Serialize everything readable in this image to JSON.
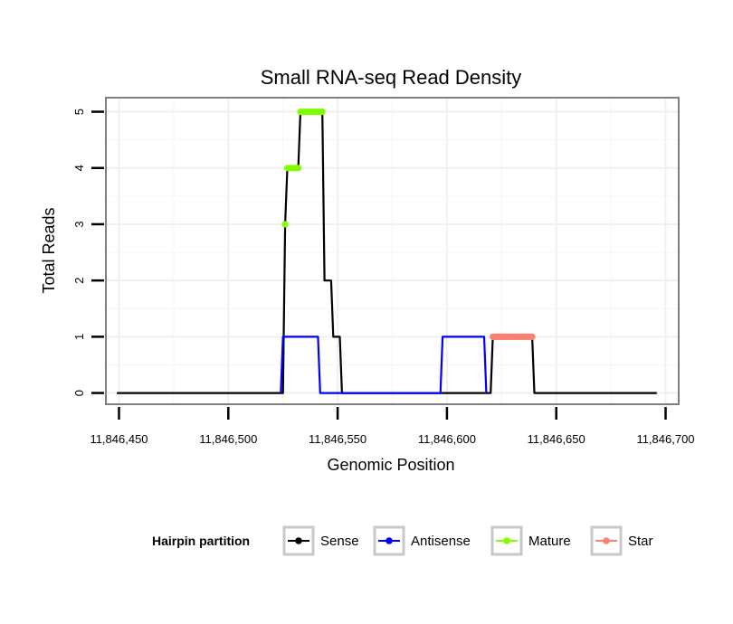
{
  "chart_data": {
    "type": "line",
    "title": "Small RNA-seq Read Density",
    "xlabel": "Genomic Position",
    "ylabel": "Total Reads",
    "xlim": [
      11846444,
      11846706
    ],
    "ylim": [
      -0.2,
      5.25
    ],
    "x_ticks": [
      11846450,
      11846500,
      11846550,
      11846600,
      11846650,
      11846700
    ],
    "x_tick_labels": [
      "11,846,450",
      "11,846,500",
      "11,846,550",
      "11,846,600",
      "11,846,650",
      "11,846,700"
    ],
    "y_ticks": [
      0,
      1,
      2,
      3,
      4,
      5
    ],
    "y_tick_labels": [
      "0",
      "1",
      "2",
      "3",
      "4",
      "5"
    ],
    "grid": true,
    "legend": {
      "title": "Hairpin partition",
      "position": "bottom",
      "entries": [
        {
          "name": "Sense",
          "color": "#000000"
        },
        {
          "name": "Antisense",
          "color": "#0000ff"
        },
        {
          "name": "Mature",
          "color": "#7fff00"
        },
        {
          "name": "Star",
          "color": "#fa8072"
        }
      ]
    },
    "series": [
      {
        "name": "Sense",
        "color": "#000000",
        "kind": "step_line",
        "x": [
          11846449,
          11846525,
          11846526,
          11846527,
          11846528,
          11846532,
          11846533,
          11846543,
          11846544,
          11846547,
          11846548,
          11846551,
          11846552,
          11846620,
          11846621,
          11846639,
          11846640,
          11846696
        ],
        "y": [
          0,
          0,
          3,
          4,
          4,
          4,
          5,
          5,
          2,
          2,
          1,
          1,
          0,
          0,
          1,
          1,
          0,
          0
        ]
      },
      {
        "name": "Antisense",
        "color": "#0000ff",
        "kind": "step_line",
        "x": [
          11846524,
          11846525,
          11846541,
          11846542,
          11846597,
          11846598,
          11846617,
          11846618
        ],
        "y": [
          0,
          1,
          1,
          0,
          0,
          1,
          1,
          0
        ]
      },
      {
        "name": "Mature",
        "color": "#7fff00",
        "kind": "points",
        "x": [
          11846526,
          11846527,
          11846528,
          11846529,
          11846530,
          11846531,
          11846532,
          11846533,
          11846534,
          11846535,
          11846536,
          11846537,
          11846538,
          11846539,
          11846540,
          11846541,
          11846542,
          11846543
        ],
        "y": [
          3,
          4,
          4,
          4,
          4,
          4,
          4,
          5,
          5,
          5,
          5,
          5,
          5,
          5,
          5,
          5,
          5,
          5
        ]
      },
      {
        "name": "Star",
        "color": "#fa8072",
        "kind": "points",
        "x": [
          11846621,
          11846622,
          11846623,
          11846624,
          11846625,
          11846626,
          11846627,
          11846628,
          11846629,
          11846630,
          11846631,
          11846632,
          11846633,
          11846634,
          11846635,
          11846636,
          11846637,
          11846638,
          11846639
        ],
        "y": [
          1,
          1,
          1,
          1,
          1,
          1,
          1,
          1,
          1,
          1,
          1,
          1,
          1,
          1,
          1,
          1,
          1,
          1,
          1
        ]
      }
    ]
  }
}
